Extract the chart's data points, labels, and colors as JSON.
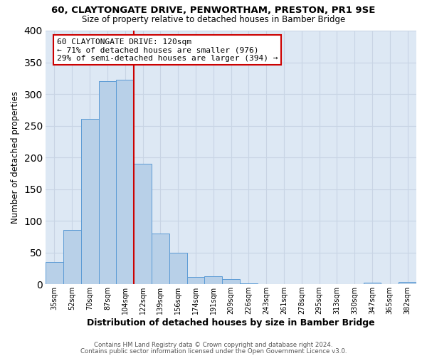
{
  "title": "60, CLAYTONGATE DRIVE, PENWORTHAM, PRESTON, PR1 9SE",
  "subtitle": "Size of property relative to detached houses in Bamber Bridge",
  "xlabel": "Distribution of detached houses by size in Bamber Bridge",
  "ylabel": "Number of detached properties",
  "bin_labels": [
    "35sqm",
    "52sqm",
    "70sqm",
    "87sqm",
    "104sqm",
    "122sqm",
    "139sqm",
    "156sqm",
    "174sqm",
    "191sqm",
    "209sqm",
    "226sqm",
    "243sqm",
    "261sqm",
    "278sqm",
    "295sqm",
    "313sqm",
    "330sqm",
    "347sqm",
    "365sqm",
    "382sqm"
  ],
  "bar_values": [
    35,
    86,
    261,
    320,
    323,
    190,
    80,
    50,
    11,
    13,
    8,
    1,
    0,
    0,
    0,
    0,
    0,
    0,
    3,
    0,
    4
  ],
  "bar_color": "#b8d0e8",
  "bar_edge_color": "#5b9bd5",
  "grid_color": "#c8d4e4",
  "background_color": "#dde8f4",
  "ylim": [
    0,
    400
  ],
  "yticks": [
    0,
    50,
    100,
    150,
    200,
    250,
    300,
    350,
    400
  ],
  "property_line_color": "#cc0000",
  "annotation_title": "60 CLAYTONGATE DRIVE: 120sqm",
  "annotation_line1": "← 71% of detached houses are smaller (976)",
  "annotation_line2": "29% of semi-detached houses are larger (394) →",
  "annotation_box_color": "#cc0000",
  "footer1": "Contains HM Land Registry data © Crown copyright and database right 2024.",
  "footer2": "Contains public sector information licensed under the Open Government Licence v3.0."
}
